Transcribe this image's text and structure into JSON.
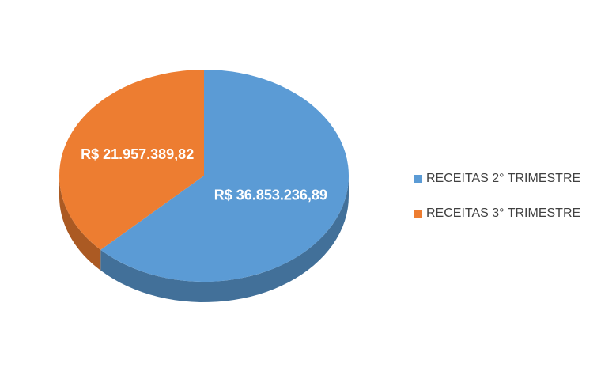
{
  "chart_data": {
    "type": "pie",
    "categories": [
      "RECEITAS 2° TRIMESTRE",
      "RECEITAS 3° TRIMESTRE"
    ],
    "values": [
      36853236.89,
      21957389.82
    ],
    "value_labels": [
      "R$ 36.853.236,89",
      "R$ 21.957.389,82"
    ],
    "colors": [
      "#5b9bd5",
      "#ed7d31"
    ],
    "legend": "right"
  }
}
